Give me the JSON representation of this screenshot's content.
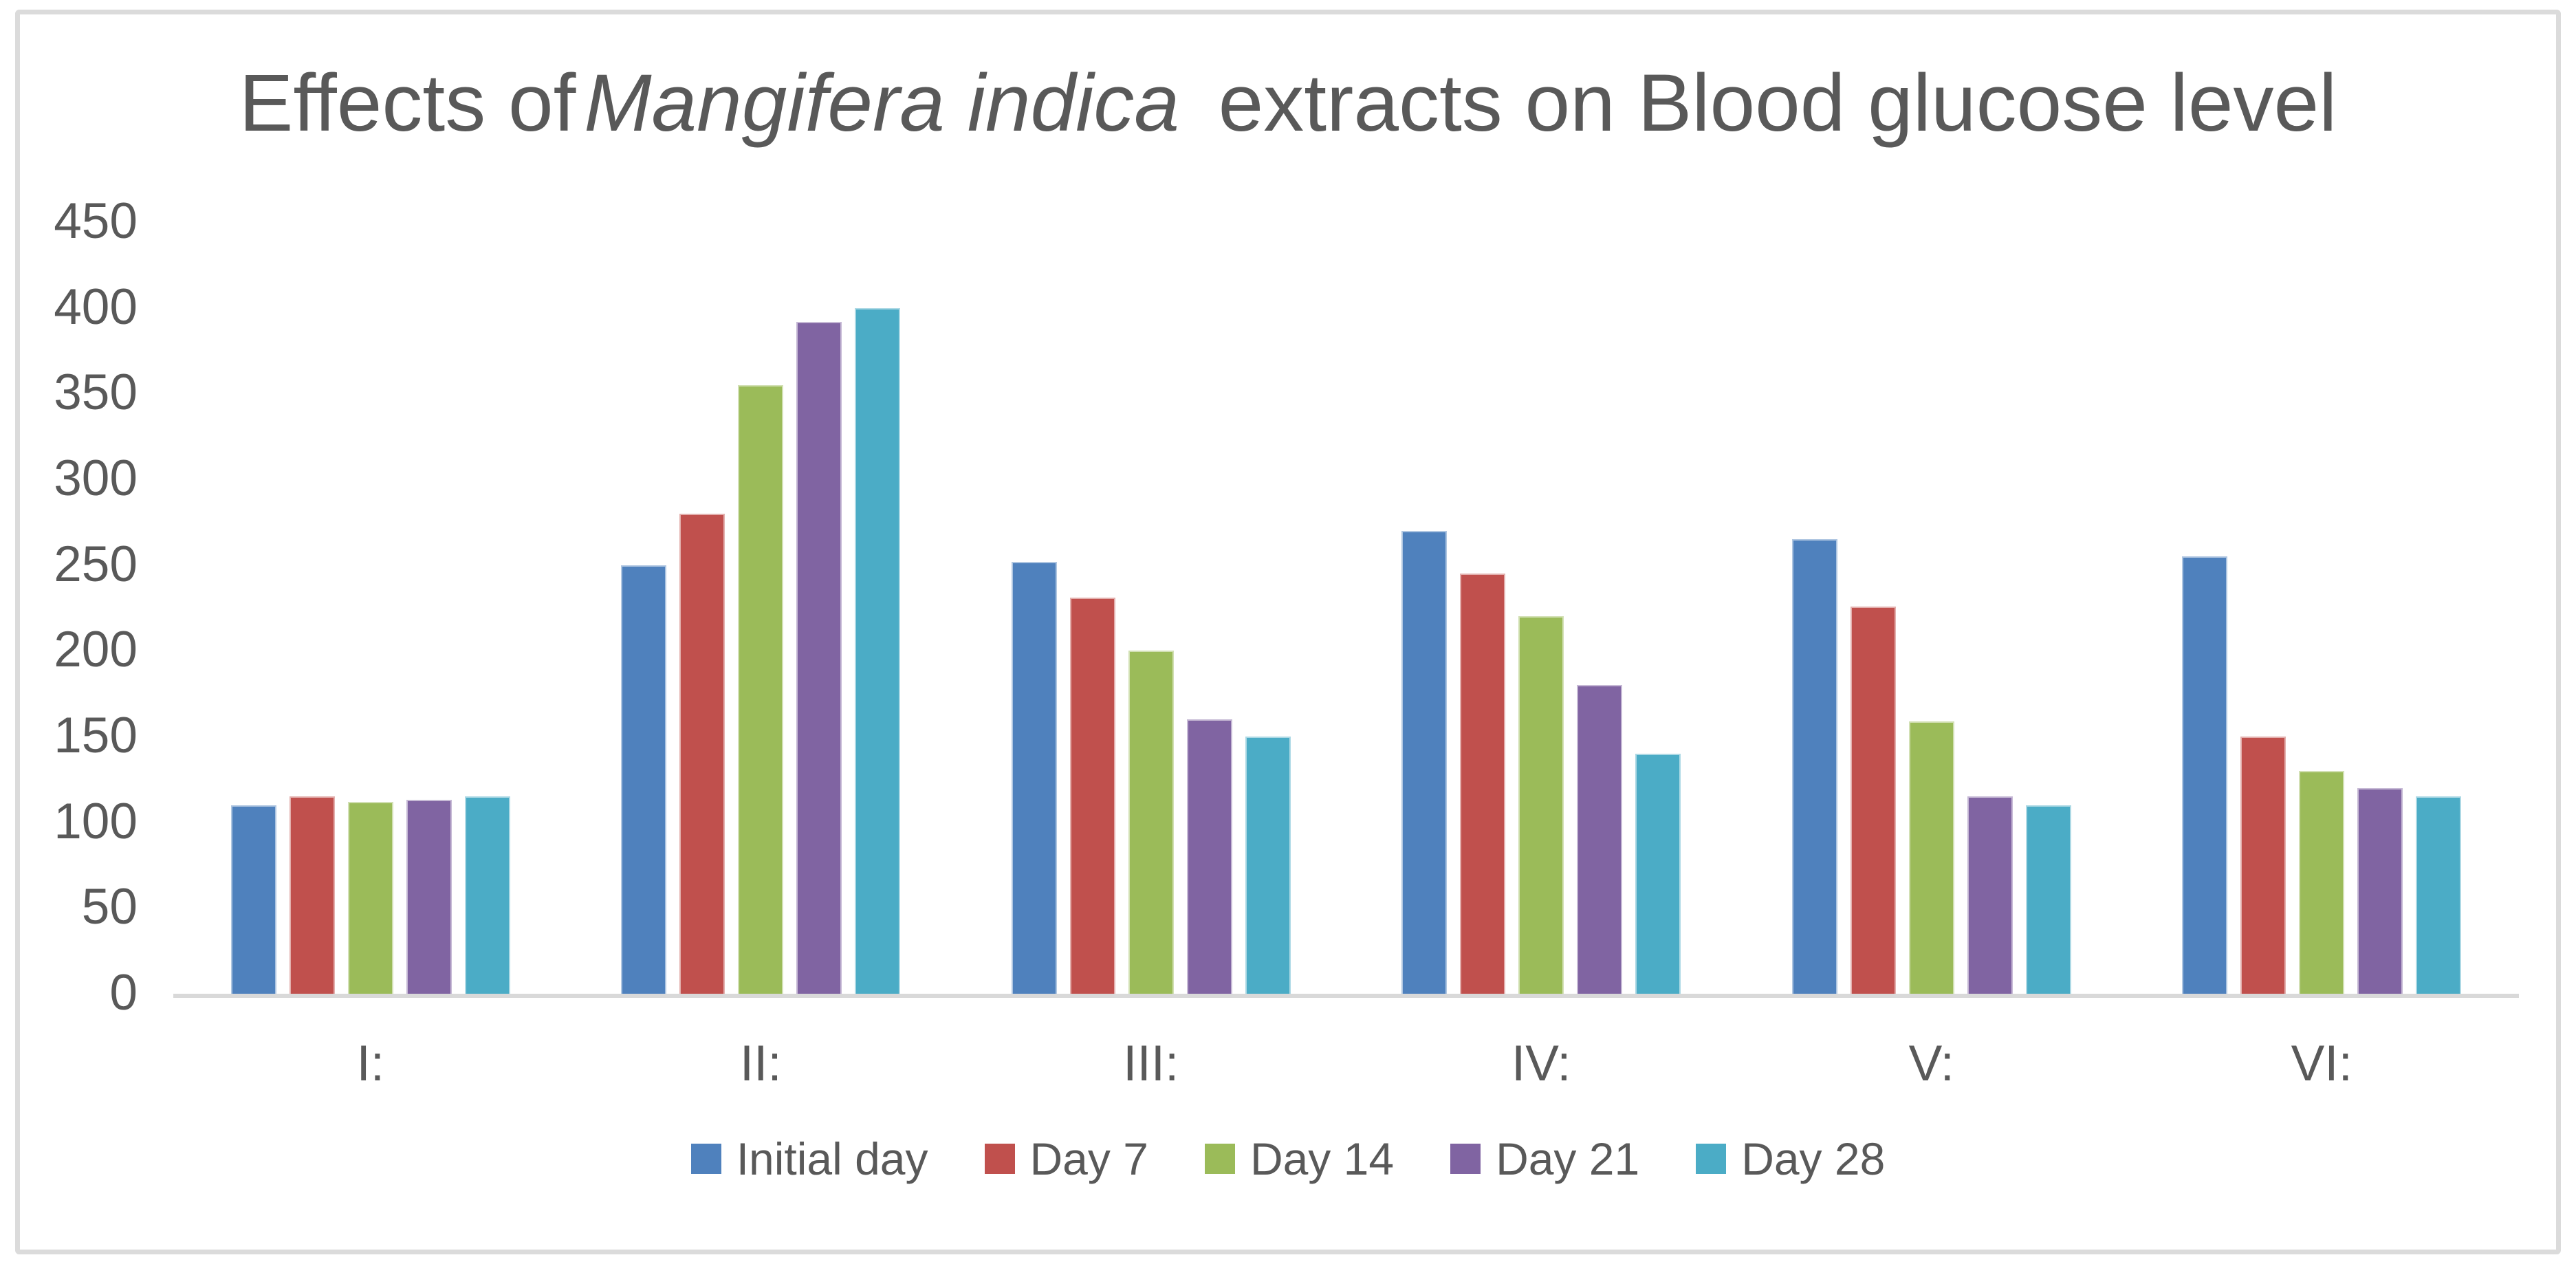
{
  "chart_data": {
    "type": "bar",
    "title": {
      "prefix": "Effects of",
      "italic": "Mangifera indica",
      "suffix": "extracts on Blood glucose level"
    },
    "categories": [
      "I:",
      "II:",
      "III:",
      "IV:",
      "V:",
      "VI:"
    ],
    "series": [
      {
        "name": "Initial day",
        "color": "#4F81BD",
        "values": [
          110,
          250,
          252,
          270,
          265,
          255
        ]
      },
      {
        "name": "Day 7",
        "color": "#C0504D",
        "values": [
          115,
          280,
          231,
          245,
          226,
          150
        ]
      },
      {
        "name": "Day 14",
        "color": "#9BBB59",
        "values": [
          112,
          355,
          200,
          220,
          159,
          130
        ]
      },
      {
        "name": "Day 21",
        "color": "#8064A2",
        "values": [
          113,
          392,
          160,
          180,
          115,
          120
        ]
      },
      {
        "name": "Day 28",
        "color": "#4BACC6",
        "values": [
          115,
          400,
          150,
          140,
          110,
          115
        ]
      }
    ],
    "ylim": [
      0,
      450
    ],
    "ytick_step": 50,
    "yticks": [
      450,
      400,
      350,
      300,
      250,
      200,
      150,
      100,
      50,
      0
    ],
    "xlabel": "",
    "ylabel": "",
    "grid": false,
    "legend_position": "bottom",
    "text_color": "#595959",
    "axis_line_color": "#D9D9D9",
    "background_color": "#FFFFFF",
    "frame_border_color": "#DBDBDB"
  }
}
